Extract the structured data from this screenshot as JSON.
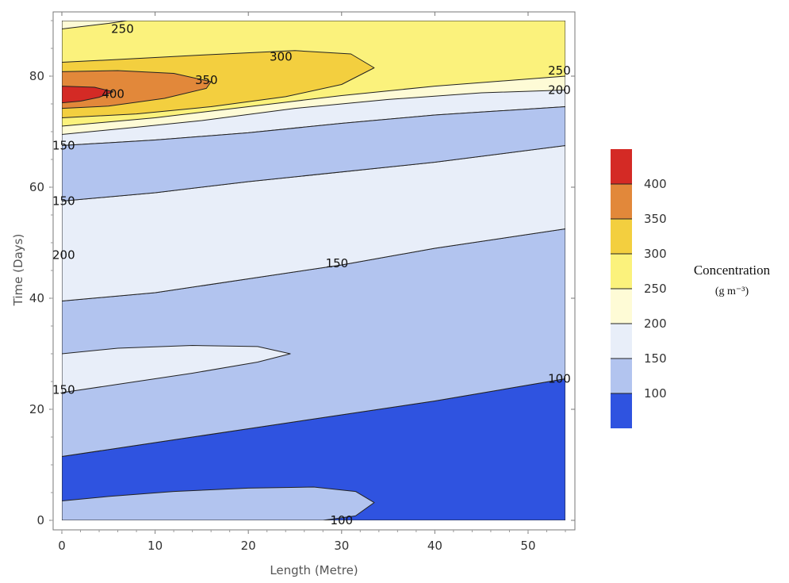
{
  "chart_data": {
    "type": "contour",
    "xlabel": "Length (Metre)",
    "ylabel": "Time (Days)",
    "xlim": [
      -0.5,
      54.5
    ],
    "ylim": [
      -1,
      90
    ],
    "x_ticks": [
      0,
      10,
      20,
      30,
      40,
      50
    ],
    "y_ticks": [
      0,
      20,
      40,
      60,
      80
    ],
    "legend": {
      "title": "Concentration",
      "unit": "(g m⁻³)",
      "placement": "right",
      "levels": [
        {
          "label": "",
          "color": "#d42a25"
        },
        {
          "label": "400",
          "color": "#e2883a"
        },
        {
          "label": "350",
          "color": "#f3cf3f"
        },
        {
          "label": "300",
          "color": "#fbf27c"
        },
        {
          "label": "250",
          "color": "#fefbd6"
        },
        {
          "label": "200",
          "color": "#e8eef9"
        },
        {
          "label": "150",
          "color": "#b2c4ef"
        },
        {
          "label": "100",
          "color": "#2f53e0"
        }
      ]
    },
    "regions": [
      {
        "level": "<100",
        "color": "#2f53e0",
        "polygon": [
          [
            0,
            0
          ],
          [
            54,
            0
          ],
          [
            54,
            25.5
          ],
          [
            40,
            21.5
          ],
          [
            20,
            16.5
          ],
          [
            10,
            14
          ],
          [
            0,
            11.5
          ]
        ]
      },
      {
        "level": "100-150",
        "color": "#b2c4ef",
        "polygon": [
          [
            0,
            3.5
          ],
          [
            5,
            4.3
          ],
          [
            12,
            5.2
          ],
          [
            20,
            5.8
          ],
          [
            27,
            6
          ],
          [
            31.5,
            5.2
          ],
          [
            33.5,
            3.2
          ],
          [
            31.5,
            0.8
          ],
          [
            28,
            0
          ],
          [
            0,
            0
          ]
        ]
      },
      {
        "level": "100-150",
        "color": "#b2c4ef",
        "polygon": [
          [
            0,
            11.5
          ],
          [
            10,
            14
          ],
          [
            20,
            16.5
          ],
          [
            40,
            21.5
          ],
          [
            54,
            25.5
          ],
          [
            54,
            52.5
          ],
          [
            40,
            49
          ],
          [
            30,
            46
          ],
          [
            20,
            43.5
          ],
          [
            10,
            41
          ],
          [
            0,
            39.5
          ]
        ]
      },
      {
        "level": "150-200",
        "color": "#e8eef9",
        "polygon": [
          [
            0,
            23
          ],
          [
            6,
            24.5
          ],
          [
            14,
            26.5
          ],
          [
            21,
            28.5
          ],
          [
            24.5,
            30
          ],
          [
            21,
            31.3
          ],
          [
            14,
            31.5
          ],
          [
            6,
            31
          ],
          [
            0,
            30
          ]
        ]
      },
      {
        "level": "150-200",
        "color": "#e8eef9",
        "polygon": [
          [
            0,
            39.5
          ],
          [
            10,
            41
          ],
          [
            20,
            43.5
          ],
          [
            30,
            46
          ],
          [
            40,
            49
          ],
          [
            54,
            52.5
          ],
          [
            54,
            67.5
          ],
          [
            40,
            64.5
          ],
          [
            20,
            61
          ],
          [
            10,
            59
          ],
          [
            0,
            57.5
          ]
        ]
      },
      {
        "level": "150-200",
        "color": "#e8eef9",
        "polygon": [
          [
            0,
            67.5
          ],
          [
            10,
            68.5
          ],
          [
            20,
            69.8
          ],
          [
            30,
            71.5
          ],
          [
            40,
            73
          ],
          [
            54,
            74.5
          ],
          [
            54,
            90
          ],
          [
            0,
            90
          ]
        ]
      },
      {
        "level": "100-150",
        "color": "#b2c4ef",
        "polygon": [
          [
            0,
            57.5
          ],
          [
            10,
            59
          ],
          [
            20,
            61
          ],
          [
            40,
            64.5
          ],
          [
            54,
            67.5
          ],
          [
            54,
            74.5
          ],
          [
            40,
            73
          ],
          [
            30,
            71.5
          ],
          [
            20,
            69.8
          ],
          [
            10,
            68.5
          ],
          [
            0,
            67.5
          ]
        ]
      },
      {
        "level": "200-250",
        "color": "#fefbd6",
        "polygon": [
          [
            0,
            69.5
          ],
          [
            8,
            70.8
          ],
          [
            15,
            72
          ],
          [
            25,
            74.2
          ],
          [
            35,
            75.8
          ],
          [
            45,
            77
          ],
          [
            54,
            77.5
          ],
          [
            54,
            90
          ],
          [
            0,
            90
          ]
        ]
      },
      {
        "level": "250-300",
        "color": "#fbf27c",
        "polygon": [
          [
            0,
            71
          ],
          [
            10,
            72.5
          ],
          [
            20,
            74.5
          ],
          [
            30,
            76.5
          ],
          [
            40,
            78.2
          ],
          [
            54,
            80
          ],
          [
            54,
            90
          ],
          [
            0,
            90
          ]
        ]
      },
      {
        "level": "200-250",
        "color": "#fefbd6",
        "polygon": [
          [
            0,
            88.5
          ],
          [
            5,
            89.5
          ],
          [
            7,
            90
          ],
          [
            0,
            90
          ]
        ]
      },
      {
        "level": "300-350",
        "color": "#f3cf3f",
        "polygon": [
          [
            0,
            72.5
          ],
          [
            8,
            73.2
          ],
          [
            16,
            74.5
          ],
          [
            24,
            76.3
          ],
          [
            30,
            78.5
          ],
          [
            33.5,
            81.5
          ],
          [
            31,
            84
          ],
          [
            25,
            84.6
          ],
          [
            15,
            83.8
          ],
          [
            6,
            83
          ],
          [
            0,
            82.5
          ]
        ]
      },
      {
        "level": "350-400",
        "color": "#e2883a",
        "polygon": [
          [
            0,
            74.2
          ],
          [
            5,
            74.6
          ],
          [
            11,
            76
          ],
          [
            15.5,
            77.8
          ],
          [
            16,
            79
          ],
          [
            12,
            80.5
          ],
          [
            6,
            81
          ],
          [
            0,
            80.8
          ]
        ]
      },
      {
        "level": ">400",
        "color": "#d42a25",
        "polygon": [
          [
            0,
            75.2
          ],
          [
            2,
            75.5
          ],
          [
            4,
            76.2
          ],
          [
            5.5,
            77.2
          ],
          [
            3.5,
            78
          ],
          [
            0,
            78.2
          ]
        ]
      }
    ],
    "contour_labels": [
      {
        "text": "250",
        "x": 6.5,
        "y": 88.5
      },
      {
        "text": "300",
        "x": 23.5,
        "y": 83.5
      },
      {
        "text": "350",
        "x": 15.5,
        "y": 79.3
      },
      {
        "text": "400",
        "x": 5.5,
        "y": 76.8
      },
      {
        "text": "250",
        "x": 53.5,
        "y": 81
      },
      {
        "text": "200",
        "x": 53.5,
        "y": 77.5
      },
      {
        "text": "150",
        "x": 0.5,
        "y": 67.5
      },
      {
        "text": "150",
        "x": 0.5,
        "y": 57.5
      },
      {
        "text": "200",
        "x": 0.5,
        "y": 47.8
      },
      {
        "text": "150",
        "x": 29.5,
        "y": 46.3
      },
      {
        "text": "150",
        "x": 0.5,
        "y": 23.5
      },
      {
        "text": "100",
        "x": 53.5,
        "y": 25.5
      },
      {
        "text": "100",
        "x": 30,
        "y": 0
      }
    ]
  }
}
